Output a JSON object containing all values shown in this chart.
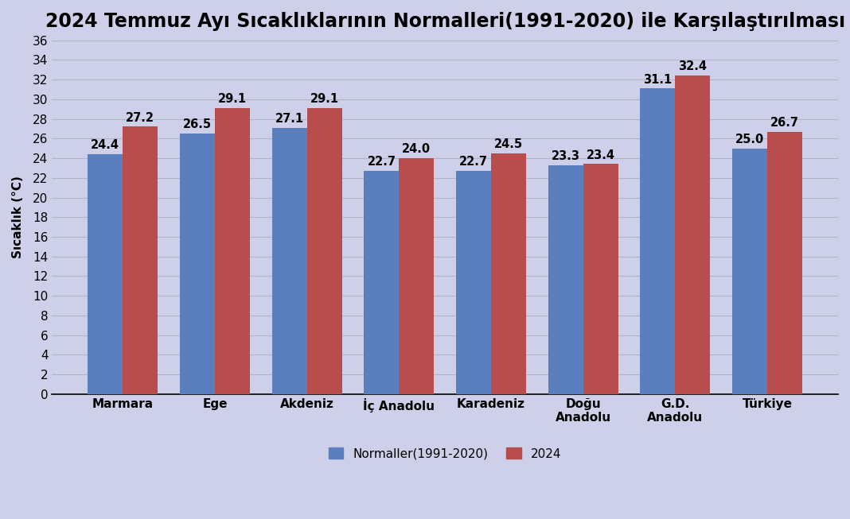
{
  "title": "2024 Temmuz Ayı Sıcaklıklarının Normalleri(1991-2020) ile Karşılaştırılması",
  "categories": [
    "Marmara",
    "Ege",
    "Akdeniz",
    "İç Anadolu",
    "Karadeniz",
    "Doğu\nAnadolu",
    "G.D.\nAnadolu",
    "Türkiye"
  ],
  "normals": [
    24.4,
    26.5,
    27.1,
    22.7,
    22.7,
    23.3,
    31.1,
    25.0
  ],
  "values_2024": [
    27.2,
    29.1,
    29.1,
    24.0,
    24.5,
    23.4,
    32.4,
    26.7
  ],
  "bar_color_normal": "#5b7fbe",
  "bar_color_2024": "#b84d4d",
  "background_color": "#cdd0e8",
  "plot_bg_color": "#cdd0e8",
  "ylabel": "Sıcaklık (°C)",
  "ylim": [
    0,
    36
  ],
  "yticks": [
    0,
    2,
    4,
    6,
    8,
    10,
    12,
    14,
    16,
    18,
    20,
    22,
    24,
    26,
    28,
    30,
    32,
    34,
    36
  ],
  "legend_normal": "Normaller(1991-2020)",
  "legend_2024": "2024",
  "title_fontsize": 17,
  "label_fontsize": 11,
  "tick_fontsize": 11,
  "bar_width": 0.38,
  "grid_color": "#b0b4c8",
  "annotation_fontsize": 10.5
}
